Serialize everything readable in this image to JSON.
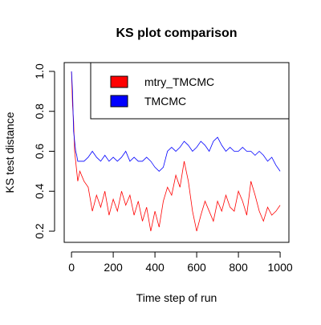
{
  "chart_data": {
    "type": "line",
    "title": "KS plot comparison",
    "x_label": "Time step of run",
    "y_label": "KS test distance",
    "x": [
      0,
      5,
      10,
      15,
      20,
      25,
      30,
      40,
      60,
      80,
      100,
      120,
      140,
      160,
      180,
      200,
      220,
      240,
      260,
      280,
      300,
      320,
      340,
      360,
      380,
      400,
      420,
      440,
      460,
      480,
      500,
      520,
      540,
      560,
      580,
      600,
      620,
      640,
      660,
      680,
      700,
      720,
      740,
      760,
      780,
      800,
      820,
      840,
      860,
      880,
      900,
      920,
      940,
      960,
      980,
      1000
    ],
    "series": [
      {
        "name": "mtry_TMCMC",
        "color": "#ff0000",
        "values": [
          1.0,
          0.83,
          0.75,
          0.6,
          0.55,
          0.5,
          0.45,
          0.5,
          0.45,
          0.42,
          0.3,
          0.38,
          0.32,
          0.4,
          0.28,
          0.36,
          0.3,
          0.4,
          0.33,
          0.38,
          0.28,
          0.35,
          0.25,
          0.32,
          0.2,
          0.3,
          0.22,
          0.35,
          0.42,
          0.38,
          0.48,
          0.42,
          0.55,
          0.45,
          0.3,
          0.2,
          0.28,
          0.35,
          0.3,
          0.25,
          0.35,
          0.3,
          0.38,
          0.32,
          0.3,
          0.4,
          0.35,
          0.28,
          0.45,
          0.38,
          0.3,
          0.25,
          0.32,
          0.28,
          0.3,
          0.33
        ]
      },
      {
        "name": "TMCMC",
        "color": "#0000ff",
        "values": [
          1.0,
          0.9,
          0.7,
          0.65,
          0.6,
          0.58,
          0.55,
          0.55,
          0.55,
          0.57,
          0.6,
          0.57,
          0.55,
          0.58,
          0.55,
          0.57,
          0.55,
          0.57,
          0.6,
          0.55,
          0.57,
          0.55,
          0.55,
          0.57,
          0.55,
          0.52,
          0.5,
          0.52,
          0.6,
          0.62,
          0.6,
          0.62,
          0.65,
          0.63,
          0.6,
          0.62,
          0.65,
          0.63,
          0.6,
          0.65,
          0.67,
          0.63,
          0.6,
          0.62,
          0.6,
          0.6,
          0.62,
          0.6,
          0.6,
          0.58,
          0.6,
          0.58,
          0.55,
          0.57,
          0.53,
          0.5
        ]
      }
    ],
    "xlim": [
      -35,
      1042
    ],
    "ylim": [
      0.144,
      1.044
    ],
    "xticks": [
      0,
      200,
      400,
      600,
      800,
      1000
    ],
    "yticks": [
      0.2,
      0.4,
      0.6,
      0.8,
      {
        "value": 1,
        "label": "1.0"
      }
    ],
    "legend": "topright"
  }
}
